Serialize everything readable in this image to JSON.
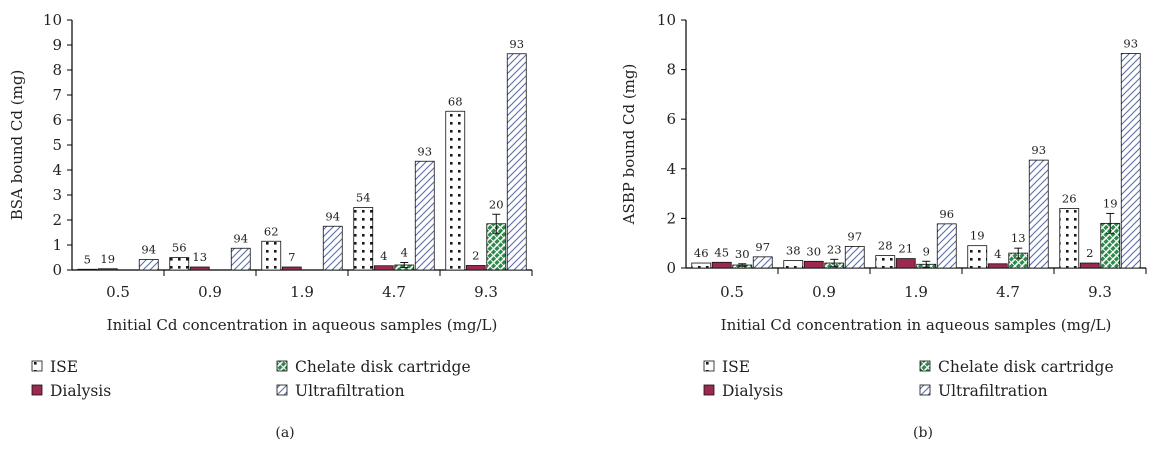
{
  "legend": [
    "ISE",
    "Dialysis",
    "Chelate disk cartridge",
    "Ultrafiltration"
  ],
  "colors": {
    "ise_fill": "#ffffff",
    "ise_dot": "#1a1a1a",
    "dialysis": "#9c2a4f",
    "chelate": "#2e8a4a",
    "ultrafiltration": "#5a6fa8",
    "axis": "#000000"
  },
  "chart_data": [
    {
      "panel": "(a)",
      "type": "bar",
      "ylabel": "BSA bound Cd (mg)",
      "xlabel": "Initial Cd concentration in aqueous samples (mg/L)",
      "ylim": [
        0,
        10
      ],
      "yticks": [
        0,
        1,
        2,
        3,
        4,
        5,
        6,
        7,
        8,
        9,
        10
      ],
      "categories": [
        "0.5",
        "0.9",
        "1.9",
        "4.7",
        "9.3"
      ],
      "series": [
        {
          "name": "ISE",
          "values": [
            0.03,
            0.5,
            1.15,
            2.5,
            6.35
          ],
          "errors": [
            0,
            0,
            0,
            0,
            0
          ],
          "labels": [
            "5",
            "56",
            "62",
            "54",
            "68"
          ]
        },
        {
          "name": "Dialysis",
          "values": [
            0.05,
            0.12,
            0.12,
            0.17,
            0.18
          ],
          "errors": [
            0,
            0,
            0,
            0,
            0
          ],
          "labels": [
            "19",
            "13",
            "7",
            "4",
            "2"
          ]
        },
        {
          "name": "Chelate disk cartridge",
          "values": [
            0,
            0,
            0,
            0.2,
            1.85
          ],
          "errors": [
            0,
            0,
            0,
            0.1,
            0.38
          ],
          "labels": [
            "",
            "",
            "",
            "4",
            "20"
          ]
        },
        {
          "name": "Ultrafiltration",
          "values": [
            0.42,
            0.87,
            1.75,
            4.35,
            8.65
          ],
          "errors": [
            0,
            0,
            0,
            0,
            0
          ],
          "labels": [
            "94",
            "94",
            "94",
            "93",
            "93"
          ]
        }
      ]
    },
    {
      "panel": "(b)",
      "type": "bar",
      "ylabel": "ASBP bound Cd (mg)",
      "xlabel": "Initial Cd concentration in aqueous samples (mg/L)",
      "ylim": [
        0,
        10
      ],
      "yticks": [
        0,
        2,
        4,
        6,
        8,
        10
      ],
      "categories": [
        "0.5",
        "0.9",
        "1.9",
        "4.7",
        "9.3"
      ],
      "series": [
        {
          "name": "ISE",
          "values": [
            0.2,
            0.3,
            0.5,
            0.9,
            2.4
          ],
          "errors": [
            0,
            0,
            0,
            0,
            0
          ],
          "labels": [
            "46",
            "38",
            "28",
            "19",
            "26"
          ]
        },
        {
          "name": "Dialysis",
          "values": [
            0.23,
            0.27,
            0.38,
            0.17,
            0.2
          ],
          "errors": [
            0,
            0,
            0,
            0,
            0
          ],
          "labels": [
            "45",
            "30",
            "21",
            "4",
            "2"
          ]
        },
        {
          "name": "Chelate disk cartridge",
          "values": [
            0.12,
            0.2,
            0.15,
            0.6,
            1.8
          ],
          "errors": [
            0.05,
            0.15,
            0.12,
            0.2,
            0.4
          ],
          "labels": [
            "30",
            "23",
            "9",
            "13",
            "19"
          ]
        },
        {
          "name": "Ultrafiltration",
          "values": [
            0.45,
            0.87,
            1.78,
            4.35,
            8.65
          ],
          "errors": [
            0,
            0,
            0,
            0,
            0
          ],
          "labels": [
            "97",
            "97",
            "96",
            "93",
            "93"
          ]
        }
      ]
    }
  ]
}
